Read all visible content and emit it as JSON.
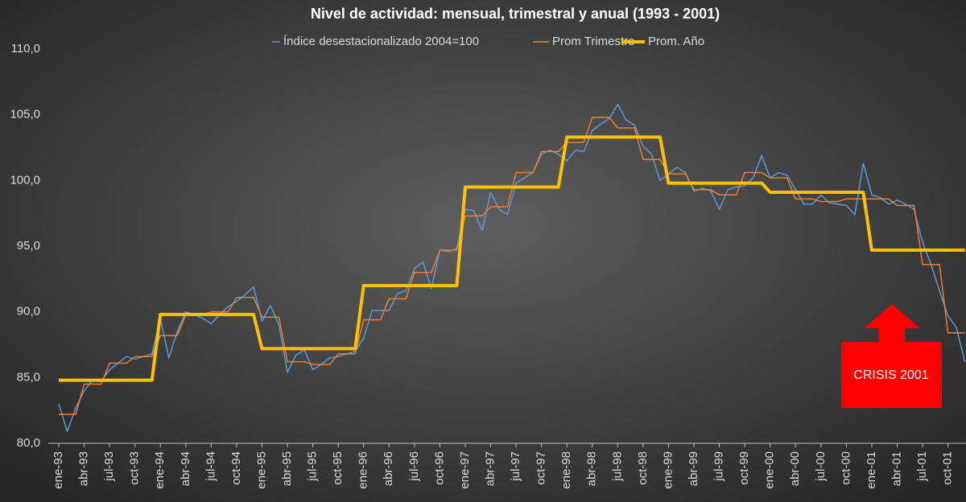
{
  "chart_data": {
    "type": "line",
    "title": "Nivel de actividad: mensual, trimestral y anual (1993 - 2001)",
    "annotation": "CRISIS 2001",
    "categories": [
      "ene-93",
      null,
      null,
      "abr-93",
      null,
      null,
      "jul-93",
      null,
      null,
      "oct-93",
      null,
      null,
      "ene-94",
      null,
      null,
      "abr-94",
      null,
      null,
      "jul-94",
      null,
      null,
      "oct-94",
      null,
      null,
      "ene-95",
      null,
      null,
      "abr-95",
      null,
      null,
      "jul-95",
      null,
      null,
      "oct-95",
      null,
      null,
      "ene-96",
      null,
      null,
      "abr-96",
      null,
      null,
      "jul-96",
      null,
      null,
      "oct-96",
      null,
      null,
      "ene-97",
      null,
      null,
      "abr-97",
      null,
      null,
      "jul-97",
      null,
      null,
      "oct-97",
      null,
      null,
      "ene-98",
      null,
      null,
      "abr-98",
      null,
      null,
      "jul-98",
      null,
      null,
      "oct-98",
      null,
      null,
      "ene-99",
      null,
      null,
      "abr-99",
      null,
      null,
      "jul-99",
      null,
      null,
      "oct-99",
      null,
      null,
      "ene-00",
      null,
      null,
      "abr-00",
      null,
      null,
      "jul-00",
      null,
      null,
      "oct-00",
      null,
      null,
      "ene-01",
      null,
      null,
      "abr-01",
      null,
      null,
      "jul-01",
      null,
      null,
      "oct-01",
      null,
      null
    ],
    "series": [
      {
        "name": "Índice desestacionalizado 2004=100",
        "color": "#5b9bd5",
        "width": 1.5,
        "values": [
          83.0,
          80.9,
          82.7,
          84.0,
          84.8,
          84.7,
          85.6,
          86.1,
          86.6,
          86.4,
          86.6,
          86.8,
          89.5,
          86.5,
          88.5,
          90.0,
          89.8,
          89.5,
          89.1,
          89.8,
          90.4,
          90.8,
          91.3,
          91.9,
          89.3,
          90.5,
          89.0,
          85.4,
          86.7,
          87.1,
          85.6,
          86.0,
          86.5,
          86.6,
          86.8,
          87.0,
          88.0,
          90.1,
          90.1,
          90.1,
          91.4,
          91.6,
          93.3,
          93.8,
          91.8,
          94.7,
          94.6,
          94.8,
          97.8,
          97.7,
          96.2,
          99.1,
          97.8,
          97.4,
          99.8,
          100.2,
          100.6,
          102.0,
          102.3,
          102.0,
          101.5,
          102.3,
          102.2,
          103.8,
          104.3,
          104.7,
          105.8,
          104.6,
          104.2,
          102.6,
          102.0,
          100.0,
          100.5,
          101.0,
          100.6,
          99.2,
          99.4,
          99.2,
          97.8,
          99.3,
          99.5,
          99.6,
          100.2,
          101.9,
          100.2,
          100.6,
          100.4,
          99.3,
          98.2,
          98.2,
          98.9,
          98.3,
          98.2,
          98.1,
          97.4,
          101.3,
          98.9,
          98.7,
          98.2,
          98.5,
          98.2,
          97.8,
          95.3,
          93.6,
          91.6,
          89.7,
          88.8,
          86.2
        ]
      },
      {
        "name": "Prom Trimestre",
        "color": "#ed7d31",
        "width": 1.5,
        "values": [
          82.2,
          82.2,
          82.2,
          84.5,
          84.5,
          84.5,
          86.1,
          86.1,
          86.1,
          86.6,
          86.6,
          86.6,
          88.2,
          88.2,
          88.2,
          89.8,
          89.8,
          89.8,
          90.0,
          90.0,
          90.0,
          91.1,
          91.1,
          91.1,
          89.6,
          89.6,
          89.6,
          86.2,
          86.2,
          86.2,
          86.0,
          86.0,
          86.0,
          86.8,
          86.8,
          86.8,
          89.4,
          89.4,
          89.4,
          91.0,
          91.0,
          91.0,
          93.0,
          93.0,
          93.0,
          94.7,
          94.7,
          94.7,
          97.3,
          97.3,
          97.3,
          98.0,
          98.0,
          98.0,
          100.6,
          100.6,
          100.6,
          102.2,
          102.2,
          102.2,
          102.9,
          102.9,
          102.9,
          104.8,
          104.8,
          104.8,
          104.0,
          104.0,
          104.0,
          101.6,
          101.6,
          101.6,
          100.5,
          100.5,
          100.5,
          99.3,
          99.3,
          99.3,
          98.9,
          98.9,
          98.9,
          100.6,
          100.6,
          100.6,
          100.2,
          100.2,
          100.2,
          98.6,
          98.6,
          98.6,
          98.4,
          98.4,
          98.4,
          98.6,
          98.6,
          98.6,
          98.6,
          98.6,
          98.6,
          98.1,
          98.1,
          98.1,
          93.6,
          93.6,
          93.6,
          88.4,
          88.4,
          88.4
        ]
      },
      {
        "name": "Prom. Año",
        "color": "#ffc000",
        "width": 4,
        "values": [
          84.8,
          84.8,
          84.8,
          84.8,
          84.8,
          84.8,
          84.8,
          84.8,
          84.8,
          84.8,
          84.8,
          84.8,
          89.8,
          89.8,
          89.8,
          89.8,
          89.8,
          89.8,
          89.8,
          89.8,
          89.8,
          89.8,
          89.8,
          89.8,
          87.2,
          87.2,
          87.2,
          87.2,
          87.2,
          87.2,
          87.2,
          87.2,
          87.2,
          87.2,
          87.2,
          87.2,
          92.0,
          92.0,
          92.0,
          92.0,
          92.0,
          92.0,
          92.0,
          92.0,
          92.0,
          92.0,
          92.0,
          92.0,
          99.5,
          99.5,
          99.5,
          99.5,
          99.5,
          99.5,
          99.5,
          99.5,
          99.5,
          99.5,
          99.5,
          99.5,
          103.3,
          103.3,
          103.3,
          103.3,
          103.3,
          103.3,
          103.3,
          103.3,
          103.3,
          103.3,
          103.3,
          103.3,
          99.8,
          99.8,
          99.8,
          99.8,
          99.8,
          99.8,
          99.8,
          99.8,
          99.8,
          99.8,
          99.8,
          99.8,
          99.1,
          99.1,
          99.1,
          99.1,
          99.1,
          99.1,
          99.1,
          99.1,
          99.1,
          99.1,
          99.1,
          99.1,
          94.7,
          94.7,
          94.7,
          94.7,
          94.7,
          94.7,
          94.7,
          94.7,
          94.7,
          94.7,
          94.7,
          94.7
        ]
      }
    ],
    "ylim": [
      80,
      110
    ],
    "yticks": [
      {
        "value": 80,
        "label": "80,0"
      },
      {
        "value": 85,
        "label": "85,0"
      },
      {
        "value": 90,
        "label": "90,0"
      },
      {
        "value": 95,
        "label": "95,0"
      },
      {
        "value": 100,
        "label": "100,0"
      },
      {
        "value": 105,
        "label": "105,0"
      },
      {
        "value": 110,
        "label": "110,0"
      }
    ]
  }
}
